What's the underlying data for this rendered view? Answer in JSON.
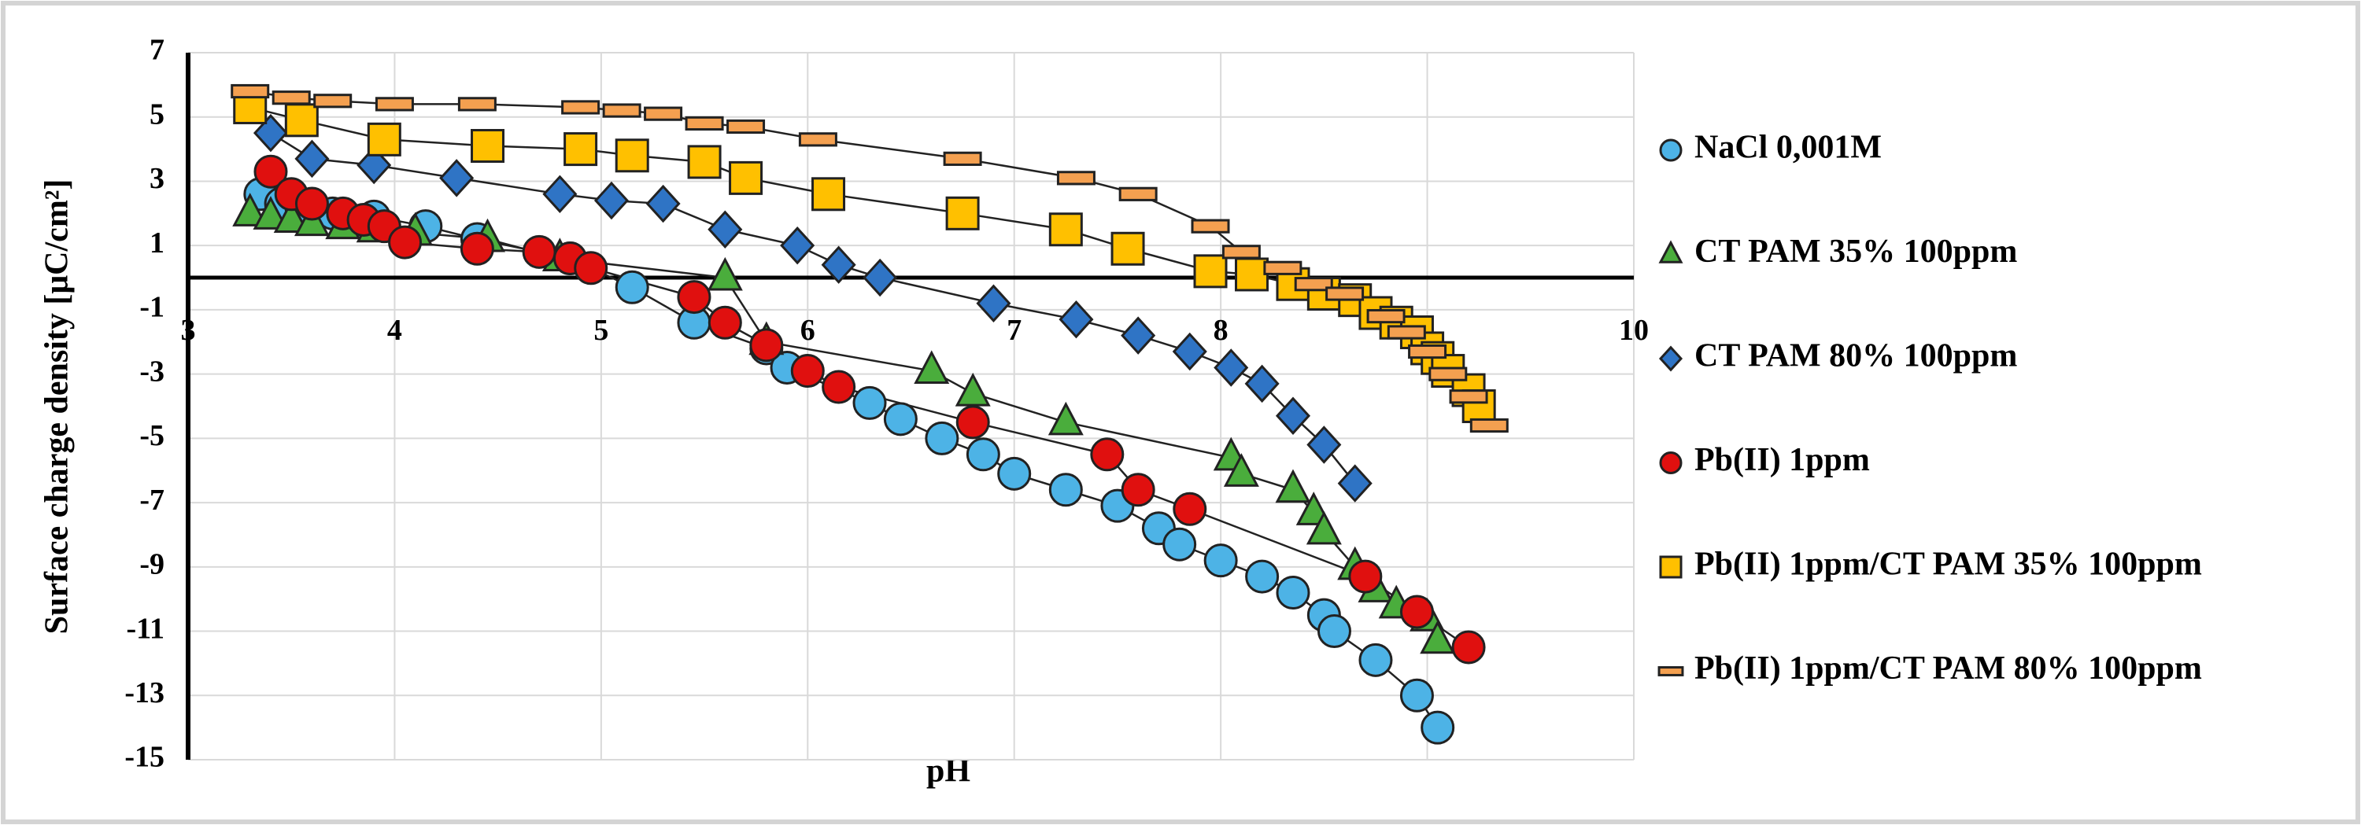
{
  "chart_data": {
    "type": "scatter",
    "x_label": "pH",
    "y_label": "Surface charge density [μC/cm²]",
    "xlim": [
      3,
      10
    ],
    "xticks": [
      3,
      4,
      5,
      6,
      7,
      8,
      9,
      10
    ],
    "ylim": [
      -15,
      7
    ],
    "yticks": [
      -15,
      -13,
      -11,
      -9,
      -7,
      -5,
      -3,
      -1,
      1,
      3,
      5,
      7
    ],
    "grid": true,
    "trendline": true,
    "legend": "right",
    "series": [
      {
        "name": "NaCl 0,001M",
        "color": "#4db3e6",
        "marker": "circle",
        "x": [
          3.35,
          3.45,
          3.55,
          3.7,
          3.9,
          4.15,
          4.4,
          4.85,
          5.15,
          5.45,
          5.8,
          5.9,
          6.3,
          6.45,
          6.65,
          6.85,
          7.0,
          7.25,
          7.5,
          7.7,
          7.8,
          8.0,
          8.2,
          8.35,
          8.5,
          8.55,
          8.75,
          8.95,
          9.05
        ],
        "y": [
          2.6,
          2.3,
          2.1,
          2.0,
          1.9,
          1.6,
          1.2,
          0.6,
          -0.3,
          -1.4,
          -2.2,
          -2.8,
          -3.9,
          -4.4,
          -5.0,
          -5.5,
          -6.1,
          -6.6,
          -7.1,
          -7.8,
          -8.3,
          -8.8,
          -9.3,
          -9.8,
          -10.5,
          -11.0,
          -11.9,
          -13.0,
          -14.0
        ]
      },
      {
        "name": "CT PAM 35% 100ppm",
        "color": "#4aad3c",
        "marker": "triangle",
        "x": [
          3.3,
          3.4,
          3.5,
          3.6,
          3.75,
          3.9,
          4.1,
          4.45,
          4.8,
          5.6,
          5.8,
          6.6,
          6.8,
          7.25,
          8.05,
          8.1,
          8.35,
          8.45,
          8.5,
          8.65,
          8.75,
          8.85,
          9.0,
          9.05
        ],
        "y": [
          2.0,
          1.9,
          1.8,
          1.7,
          1.6,
          1.5,
          1.4,
          1.2,
          0.6,
          0.0,
          -2.0,
          -2.9,
          -3.6,
          -4.5,
          -5.6,
          -6.1,
          -6.6,
          -7.3,
          -7.9,
          -9.0,
          -9.7,
          -10.2,
          -10.6,
          -11.3
        ]
      },
      {
        "name": "CT PAM 80% 100ppm",
        "color": "#2f74c5",
        "marker": "diamond",
        "x": [
          3.4,
          3.6,
          3.9,
          4.3,
          4.8,
          5.05,
          5.3,
          5.6,
          5.95,
          6.15,
          6.35,
          6.9,
          7.3,
          7.6,
          7.85,
          8.05,
          8.2,
          8.35,
          8.5,
          8.65
        ],
        "y": [
          4.5,
          3.7,
          3.5,
          3.1,
          2.6,
          2.4,
          2.3,
          1.5,
          1.0,
          0.4,
          0.0,
          -0.8,
          -1.3,
          -1.8,
          -2.3,
          -2.8,
          -3.3,
          -4.3,
          -5.2,
          -6.4
        ]
      },
      {
        "name": "Pb(II) 1ppm",
        "color": "#e0100f",
        "marker": "circle",
        "x": [
          3.4,
          3.5,
          3.6,
          3.75,
          3.85,
          3.95,
          4.05,
          4.4,
          4.7,
          4.85,
          4.95,
          5.45,
          5.6,
          5.8,
          6.0,
          6.15,
          6.8,
          7.45,
          7.6,
          7.85,
          8.7,
          8.95,
          9.2
        ],
        "y": [
          3.3,
          2.6,
          2.3,
          2.0,
          1.8,
          1.6,
          1.1,
          0.9,
          0.8,
          0.6,
          0.3,
          -0.6,
          -1.4,
          -2.1,
          -2.9,
          -3.4,
          -4.5,
          -5.5,
          -6.6,
          -7.2,
          -9.3,
          -10.4,
          -11.5
        ]
      },
      {
        "name": "Pb(II) 1ppm/CT PAM 35% 100ppm",
        "color": "#ffc000",
        "marker": "square",
        "x": [
          3.3,
          3.55,
          3.95,
          4.45,
          4.9,
          5.15,
          5.5,
          5.7,
          6.1,
          6.75,
          7.25,
          7.55,
          7.95,
          8.15,
          8.35,
          8.5,
          8.65,
          8.75,
          8.85,
          8.95,
          9.0,
          9.05,
          9.1,
          9.2,
          9.25
        ],
        "y": [
          5.3,
          4.9,
          4.3,
          4.1,
          4.0,
          3.8,
          3.6,
          3.1,
          2.6,
          2.0,
          1.5,
          0.9,
          0.2,
          0.1,
          -0.2,
          -0.5,
          -0.7,
          -1.1,
          -1.4,
          -1.7,
          -2.2,
          -2.5,
          -2.9,
          -3.5,
          -4.0
        ]
      },
      {
        "name": "Pb(II) 1ppm/CT PAM 80% 100ppm",
        "color": "#f4a050",
        "marker": "dash",
        "x": [
          3.3,
          3.5,
          3.7,
          4.0,
          4.4,
          4.9,
          5.1,
          5.3,
          5.5,
          5.7,
          6.05,
          6.75,
          7.3,
          7.6,
          7.95,
          8.1,
          8.3,
          8.45,
          8.6,
          8.8,
          8.9,
          9.0,
          9.1,
          9.2,
          9.3
        ],
        "y": [
          5.8,
          5.6,
          5.5,
          5.4,
          5.4,
          5.3,
          5.2,
          5.1,
          4.8,
          4.7,
          4.3,
          3.7,
          3.1,
          2.6,
          1.6,
          0.8,
          0.3,
          -0.2,
          -0.5,
          -1.2,
          -1.7,
          -2.3,
          -3.0,
          -3.7,
          -4.6
        ]
      }
    ]
  }
}
